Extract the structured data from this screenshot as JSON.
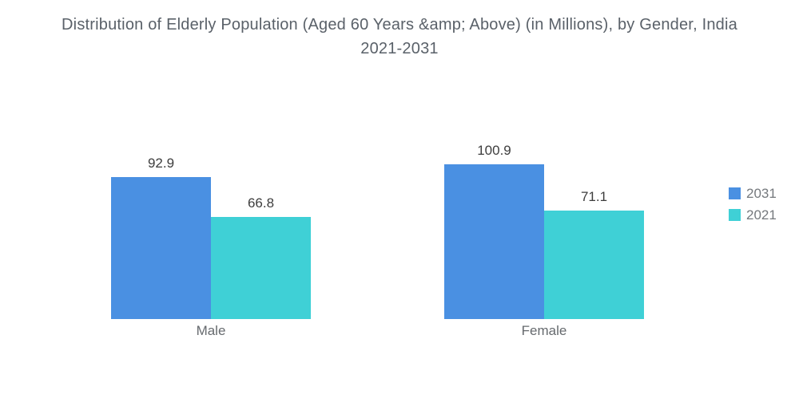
{
  "title": "Distribution of Elderly Population (Aged 60 Years &amp; Above) (in Millions), by Gender, India 2021-2031",
  "chart_data": {
    "type": "bar",
    "title": "Distribution of Elderly Population (Aged 60 Years &amp; Above) (in Millions), by Gender, India 2021-2031",
    "categories": [
      "Male",
      "Female"
    ],
    "series": [
      {
        "name": "2031",
        "color": "#4A90E2",
        "values": [
          92.9,
          100.9
        ]
      },
      {
        "name": "2021",
        "color": "#3FD0D6",
        "values": [
          66.8,
          71.1
        ]
      }
    ],
    "value_labels": true,
    "legend_position": "right",
    "grid": false,
    "axes_visible": false,
    "xlabel": "",
    "ylabel": "",
    "ylim": [
      0,
      125
    ]
  }
}
